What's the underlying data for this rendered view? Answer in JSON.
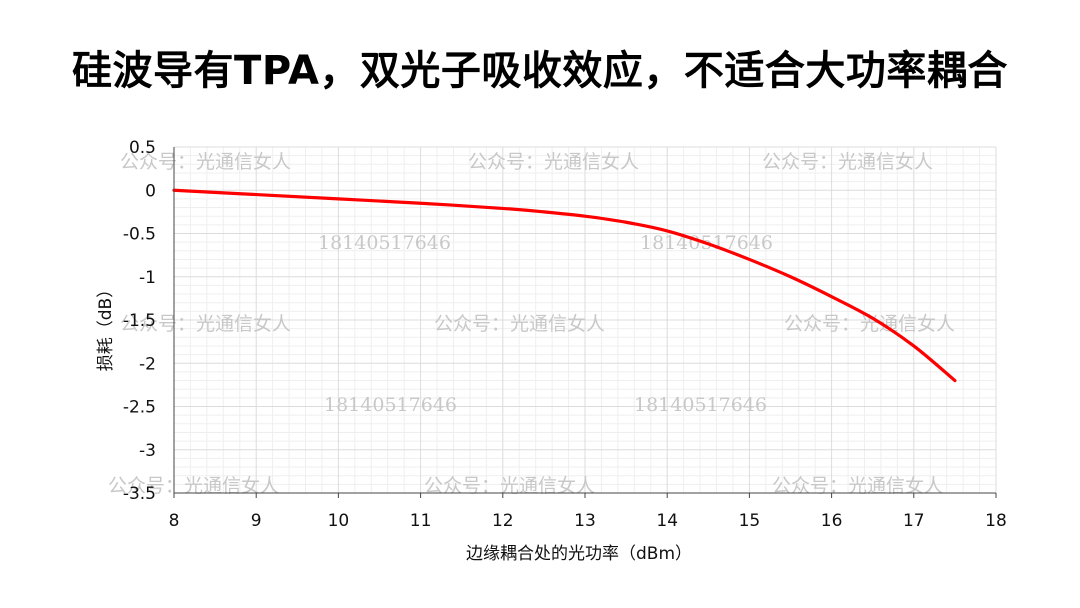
{
  "title": "硅波导有TPA，双光子吸收效应，不适合大功率耦合",
  "watermarks": {
    "account": "公众号：光通信女人",
    "phone": "18140517646"
  },
  "colors": {
    "series": "#ff0000",
    "watermark": "#c8c8c8"
  },
  "chart_data": {
    "type": "line",
    "title": "硅波导有TPA，双光子吸收效应，不适合大功率耦合",
    "xlabel": "边缘耦合处的光功率（dBm）",
    "ylabel": "损耗（dB）",
    "xlim": [
      8,
      18
    ],
    "ylim": [
      -3.5,
      0.5
    ],
    "x_ticks": [
      8,
      9,
      10,
      11,
      12,
      13,
      14,
      15,
      16,
      17,
      18
    ],
    "y_ticks": [
      0.5,
      0,
      -0.5,
      -1,
      -1.5,
      -2,
      -2.5,
      -3,
      -3.5
    ],
    "grid": true,
    "series": [
      {
        "name": "loss",
        "x": [
          8,
          9,
          10,
          11,
          12,
          12.5,
          13,
          13.5,
          14,
          14.5,
          15,
          15.5,
          16,
          16.5,
          17,
          17.5
        ],
        "y": [
          0,
          -0.05,
          -0.1,
          -0.15,
          -0.21,
          -0.25,
          -0.3,
          -0.37,
          -0.47,
          -0.62,
          -0.8,
          -1.0,
          -1.23,
          -1.48,
          -1.8,
          -2.2
        ]
      }
    ]
  }
}
